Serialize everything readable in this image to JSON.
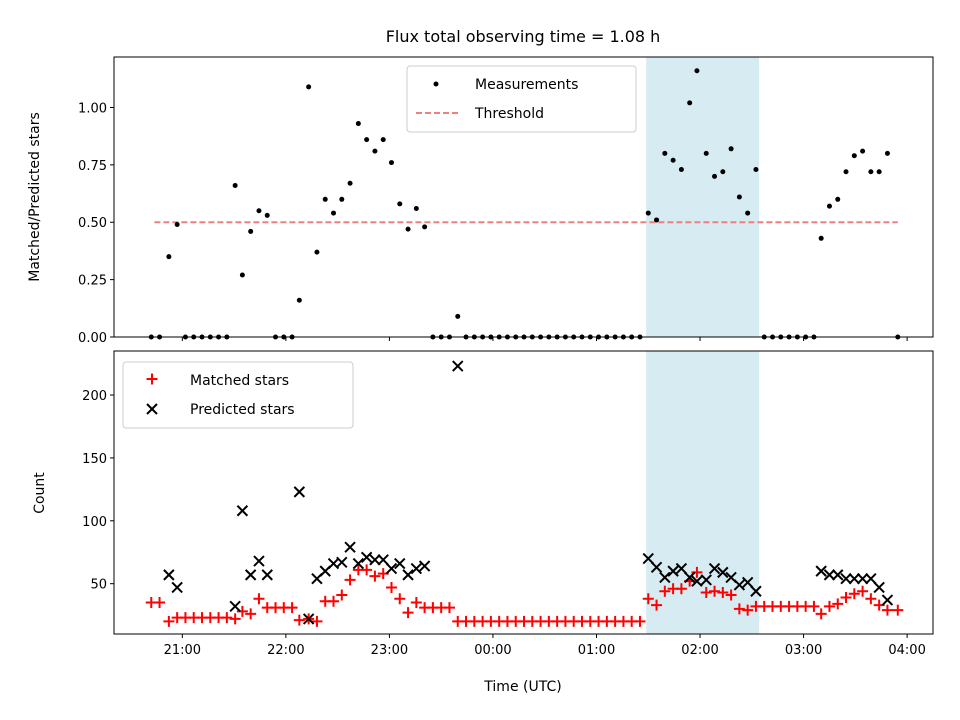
{
  "chart_data": [
    {
      "type": "scatter",
      "title": "Flux total observing time = 1.08 h",
      "ylabel": "Matched/Predicted stars",
      "xlabel": "",
      "x_range_hours": [
        20.34,
        28.25
      ],
      "ylim": [
        0.0,
        1.22
      ],
      "y_ticks": [
        0.0,
        0.25,
        0.5,
        0.75,
        1.0
      ],
      "y_tick_labels": [
        "0.00",
        "0.25",
        "0.50",
        "0.75",
        "1.00"
      ],
      "x_ticks_hours": [
        21,
        22,
        23,
        24,
        25,
        26,
        27,
        28
      ],
      "highlight_span_hours": [
        25.48,
        26.57
      ],
      "legend": {
        "location": "upper center",
        "entries": [
          "Measurements",
          "Threshold"
        ]
      },
      "threshold": {
        "name": "Threshold",
        "value": 0.5,
        "x_start_hours": 20.73,
        "x_end_hours": 27.91,
        "color": "#f08080",
        "style": "dashed"
      },
      "series": [
        {
          "name": "Measurements",
          "color": "#000000",
          "marker": "dot",
          "points": [
            [
              20.7,
              0
            ],
            [
              20.78,
              0
            ],
            [
              20.87,
              0.35
            ],
            [
              20.95,
              0.49
            ],
            [
              21.03,
              0
            ],
            [
              21.11,
              0
            ],
            [
              21.19,
              0
            ],
            [
              21.27,
              0
            ],
            [
              21.35,
              0
            ],
            [
              21.43,
              0
            ],
            [
              21.51,
              0.66
            ],
            [
              21.58,
              0.27
            ],
            [
              21.66,
              0.46
            ],
            [
              21.74,
              0.55
            ],
            [
              21.82,
              0.53
            ],
            [
              21.9,
              0
            ],
            [
              21.98,
              0
            ],
            [
              22.06,
              0
            ],
            [
              22.13,
              0.16
            ],
            [
              22.22,
              1.09
            ],
            [
              22.3,
              0.37
            ],
            [
              22.38,
              0.6
            ],
            [
              22.46,
              0.54
            ],
            [
              22.54,
              0.6
            ],
            [
              22.62,
              0.67
            ],
            [
              22.7,
              0.93
            ],
            [
              22.78,
              0.86
            ],
            [
              22.86,
              0.81
            ],
            [
              22.94,
              0.86
            ],
            [
              23.02,
              0.76
            ],
            [
              23.1,
              0.58
            ],
            [
              23.18,
              0.47
            ],
            [
              23.26,
              0.56
            ],
            [
              23.34,
              0.48
            ],
            [
              23.42,
              0
            ],
            [
              23.5,
              0
            ],
            [
              23.58,
              0
            ],
            [
              23.66,
              0.09
            ],
            [
              23.74,
              0
            ],
            [
              23.82,
              0
            ],
            [
              23.9,
              0
            ],
            [
              23.98,
              0
            ],
            [
              24.06,
              0
            ],
            [
              24.14,
              0
            ],
            [
              24.22,
              0
            ],
            [
              24.3,
              0
            ],
            [
              24.38,
              0
            ],
            [
              24.46,
              0
            ],
            [
              24.54,
              0
            ],
            [
              24.62,
              0
            ],
            [
              24.7,
              0
            ],
            [
              24.78,
              0
            ],
            [
              24.86,
              0
            ],
            [
              24.94,
              0
            ],
            [
              25.02,
              0
            ],
            [
              25.1,
              0
            ],
            [
              25.18,
              0
            ],
            [
              25.26,
              0
            ],
            [
              25.34,
              0
            ],
            [
              25.42,
              0
            ],
            [
              25.5,
              0.54
            ],
            [
              25.58,
              0.51
            ],
            [
              25.66,
              0.8
            ],
            [
              25.74,
              0.77
            ],
            [
              25.82,
              0.73
            ],
            [
              25.9,
              1.02
            ],
            [
              25.97,
              1.16
            ],
            [
              26.06,
              0.8
            ],
            [
              26.14,
              0.7
            ],
            [
              26.22,
              0.72
            ],
            [
              26.3,
              0.82
            ],
            [
              26.38,
              0.61
            ],
            [
              26.46,
              0.54
            ],
            [
              26.54,
              0.73
            ],
            [
              26.62,
              0
            ],
            [
              26.7,
              0
            ],
            [
              26.78,
              0
            ],
            [
              26.86,
              0
            ],
            [
              26.94,
              0
            ],
            [
              27.02,
              0
            ],
            [
              27.1,
              0
            ],
            [
              27.17,
              0.43
            ],
            [
              27.25,
              0.57
            ],
            [
              27.33,
              0.6
            ],
            [
              27.41,
              0.72
            ],
            [
              27.49,
              0.79
            ],
            [
              27.57,
              0.81
            ],
            [
              27.65,
              0.72
            ],
            [
              27.73,
              0.72
            ],
            [
              27.81,
              0.8
            ],
            [
              27.91,
              0
            ]
          ]
        }
      ]
    },
    {
      "type": "scatter",
      "title": "",
      "xlabel": "Time (UTC)",
      "ylabel": "Count",
      "x_range_hours": [
        20.34,
        28.25
      ],
      "ylim": [
        10,
        235
      ],
      "y_ticks": [
        50,
        100,
        150,
        200
      ],
      "y_tick_labels": [
        "50",
        "100",
        "150",
        "200"
      ],
      "x_ticks_hours": [
        21,
        22,
        23,
        24,
        25,
        26,
        27,
        28
      ],
      "x_tick_labels": [
        "21:00",
        "22:00",
        "23:00",
        "00:00",
        "01:00",
        "02:00",
        "03:00",
        "04:00"
      ],
      "highlight_span_hours": [
        25.48,
        26.57
      ],
      "legend": {
        "location": "upper left",
        "entries": [
          "Matched stars",
          "Predicted stars"
        ]
      },
      "series": [
        {
          "name": "Matched stars",
          "color": "#ff0000",
          "marker": "plus",
          "points": [
            [
              20.7,
              35
            ],
            [
              20.78,
              35
            ],
            [
              20.87,
              20
            ],
            [
              20.95,
              23
            ],
            [
              21.03,
              23
            ],
            [
              21.11,
              23
            ],
            [
              21.19,
              23
            ],
            [
              21.27,
              23
            ],
            [
              21.35,
              23
            ],
            [
              21.43,
              23
            ],
            [
              21.51,
              22
            ],
            [
              21.58,
              28
            ],
            [
              21.66,
              26
            ],
            [
              21.74,
              38
            ],
            [
              21.82,
              31
            ],
            [
              21.9,
              31
            ],
            [
              21.98,
              31
            ],
            [
              22.06,
              31
            ],
            [
              22.13,
              21
            ],
            [
              22.22,
              22
            ],
            [
              22.3,
              20
            ],
            [
              22.38,
              36
            ],
            [
              22.46,
              36
            ],
            [
              22.54,
              41
            ],
            [
              22.62,
              53
            ],
            [
              22.7,
              61
            ],
            [
              22.78,
              61
            ],
            [
              22.86,
              56
            ],
            [
              22.94,
              58
            ],
            [
              23.02,
              47
            ],
            [
              23.1,
              38
            ],
            [
              23.18,
              27
            ],
            [
              23.26,
              35
            ],
            [
              23.34,
              31
            ],
            [
              23.42,
              31
            ],
            [
              23.5,
              31
            ],
            [
              23.58,
              31
            ],
            [
              23.66,
              20
            ],
            [
              23.74,
              20
            ],
            [
              23.82,
              20
            ],
            [
              23.9,
              20
            ],
            [
              23.98,
              20
            ],
            [
              24.06,
              20
            ],
            [
              24.14,
              20
            ],
            [
              24.22,
              20
            ],
            [
              24.3,
              20
            ],
            [
              24.38,
              20
            ],
            [
              24.46,
              20
            ],
            [
              24.54,
              20
            ],
            [
              24.62,
              20
            ],
            [
              24.7,
              20
            ],
            [
              24.78,
              20
            ],
            [
              24.86,
              20
            ],
            [
              24.94,
              20
            ],
            [
              25.02,
              20
            ],
            [
              25.1,
              20
            ],
            [
              25.18,
              20
            ],
            [
              25.26,
              20
            ],
            [
              25.34,
              20
            ],
            [
              25.42,
              20
            ],
            [
              25.5,
              38
            ],
            [
              25.58,
              33
            ],
            [
              25.66,
              44
            ],
            [
              25.74,
              46
            ],
            [
              25.82,
              46
            ],
            [
              25.9,
              52
            ],
            [
              25.97,
              59
            ],
            [
              26.06,
              43
            ],
            [
              26.14,
              44
            ],
            [
              26.22,
              43
            ],
            [
              26.3,
              41
            ],
            [
              26.38,
              30
            ],
            [
              26.46,
              29
            ],
            [
              26.54,
              32
            ],
            [
              26.62,
              32
            ],
            [
              26.7,
              32
            ],
            [
              26.78,
              32
            ],
            [
              26.86,
              32
            ],
            [
              26.94,
              32
            ],
            [
              27.02,
              32
            ],
            [
              27.1,
              32
            ],
            [
              27.17,
              26
            ],
            [
              27.25,
              32
            ],
            [
              27.33,
              34
            ],
            [
              27.41,
              39
            ],
            [
              27.49,
              42
            ],
            [
              27.57,
              44
            ],
            [
              27.65,
              38
            ],
            [
              27.73,
              33
            ],
            [
              27.81,
              29
            ],
            [
              27.91,
              29
            ]
          ]
        },
        {
          "name": "Predicted stars",
          "color": "#000000",
          "marker": "x",
          "points": [
            [
              20.87,
              57
            ],
            [
              20.95,
              47
            ],
            [
              21.51,
              32
            ],
            [
              21.58,
              108
            ],
            [
              21.66,
              57
            ],
            [
              21.74,
              68
            ],
            [
              21.82,
              57
            ],
            [
              22.13,
              123
            ],
            [
              22.22,
              22
            ],
            [
              22.3,
              54
            ],
            [
              22.38,
              60
            ],
            [
              22.46,
              66
            ],
            [
              22.54,
              67
            ],
            [
              22.62,
              79
            ],
            [
              22.7,
              66
            ],
            [
              22.78,
              71
            ],
            [
              22.86,
              69
            ],
            [
              22.94,
              69
            ],
            [
              23.02,
              62
            ],
            [
              23.1,
              66
            ],
            [
              23.18,
              57
            ],
            [
              23.26,
              62
            ],
            [
              23.34,
              64
            ],
            [
              23.66,
              223
            ],
            [
              25.5,
              70
            ],
            [
              25.58,
              63
            ],
            [
              25.66,
              55
            ],
            [
              25.74,
              60
            ],
            [
              25.82,
              62
            ],
            [
              25.9,
              55
            ],
            [
              25.97,
              52
            ],
            [
              26.06,
              53
            ],
            [
              26.14,
              62
            ],
            [
              26.22,
              59
            ],
            [
              26.3,
              55
            ],
            [
              26.38,
              49
            ],
            [
              26.46,
              51
            ],
            [
              26.54,
              44
            ],
            [
              27.17,
              60
            ],
            [
              27.25,
              57
            ],
            [
              27.33,
              57
            ],
            [
              27.41,
              54
            ],
            [
              27.49,
              54
            ],
            [
              27.57,
              54
            ],
            [
              27.65,
              54
            ],
            [
              27.73,
              47
            ],
            [
              27.81,
              37
            ]
          ]
        }
      ]
    }
  ],
  "colors": {
    "highlight_span": "#add8e6",
    "threshold": "#f08080",
    "matched": "#ff0000",
    "predicted": "#000000"
  }
}
